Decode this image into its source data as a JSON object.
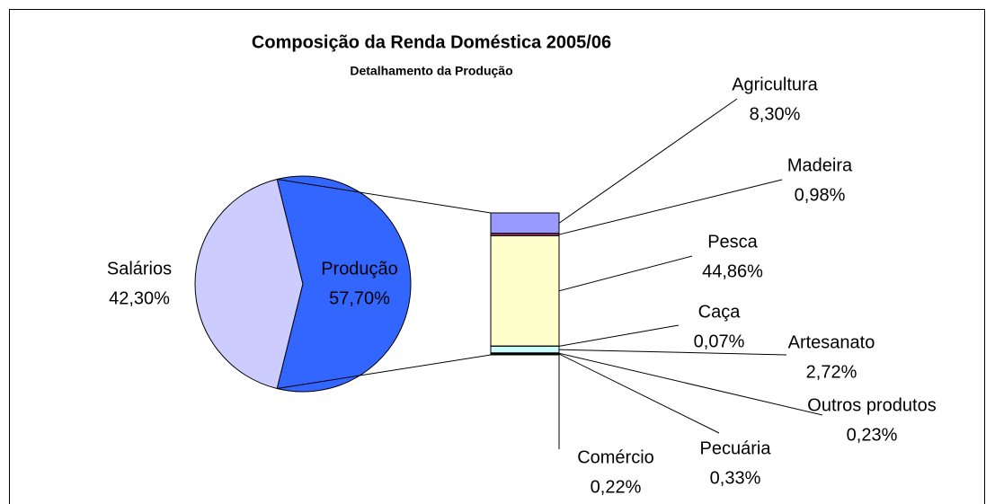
{
  "chart_data": {
    "type": "pie-of-bar",
    "title": "Composição da Renda Doméstica 2005/06",
    "subtitle": "Detalhamento da Produção",
    "pie": {
      "categories": [
        "Salários",
        "Produção"
      ],
      "values": [
        42.3,
        57.7
      ],
      "value_labels": [
        "42,30%",
        "57,70%"
      ],
      "colors": [
        "#ccccff",
        "#3366ff"
      ]
    },
    "bar": {
      "categories": [
        "Agricultura",
        "Madeira",
        "Pesca",
        "Caça",
        "Artesanato",
        "Outros produtos",
        "Pecuária",
        "Comércio"
      ],
      "values": [
        8.3,
        0.98,
        44.86,
        0.07,
        2.72,
        0.23,
        0.33,
        0.22
      ],
      "value_labels": [
        "8,30%",
        "0,98%",
        "44,86%",
        "0,07%",
        "2,72%",
        "0,23%",
        "0,33%",
        "0,22%"
      ],
      "colors": [
        "#9999ff",
        "#993366",
        "#ffffcc",
        "#660066",
        "#ccffff",
        "#000080",
        "#333333",
        "#000000"
      ]
    }
  }
}
